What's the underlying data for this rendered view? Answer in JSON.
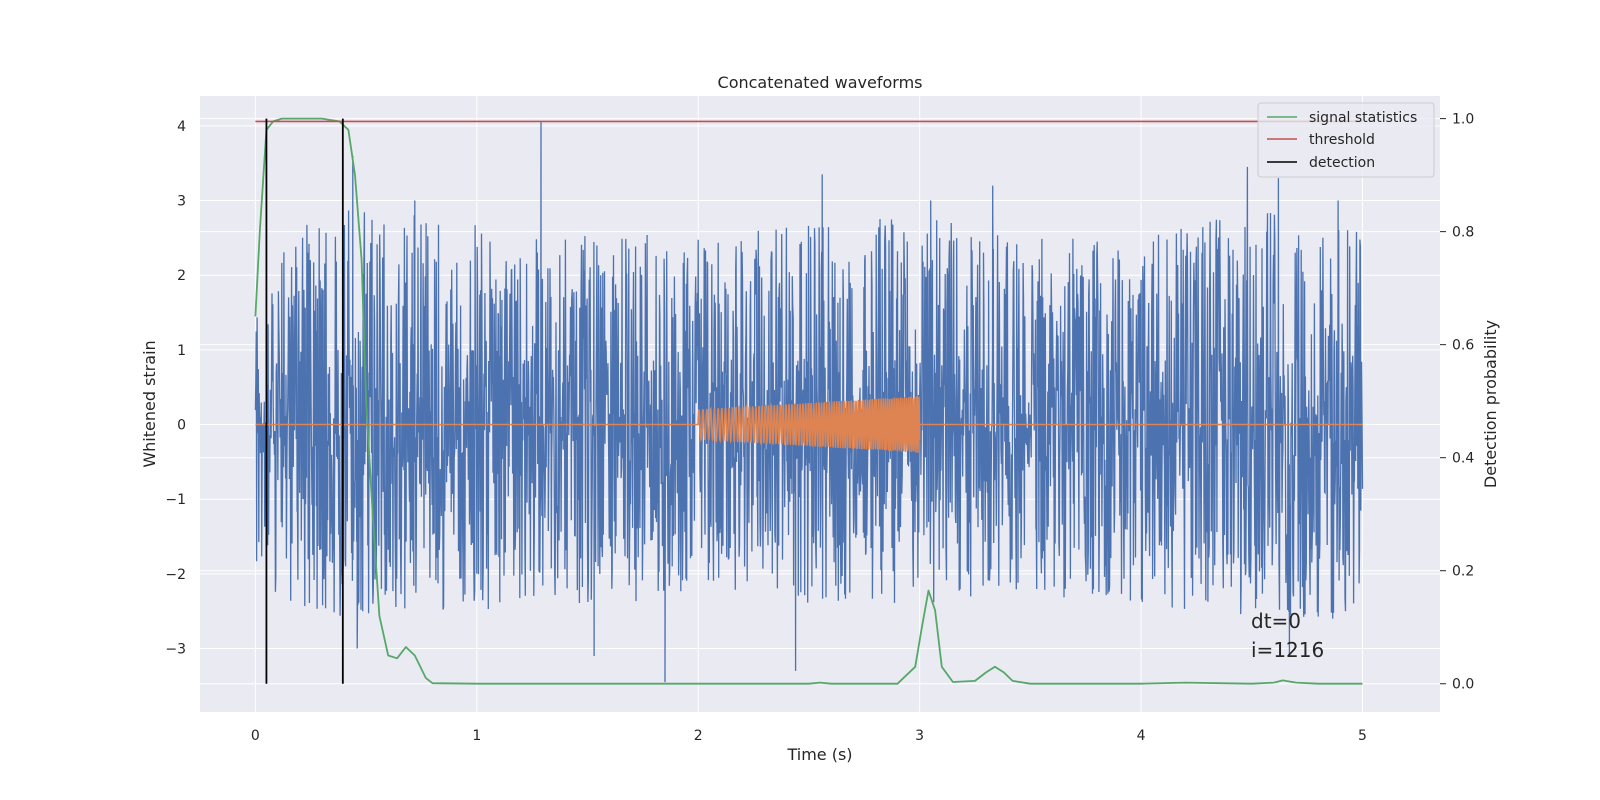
{
  "chart_data": {
    "type": "line",
    "title": "Concatenated waveforms",
    "xlabel": "Time (s)",
    "ylabel": "Whitened strain",
    "ylabel_right": "Detection probability",
    "xlim": [
      -0.25,
      5.35
    ],
    "ylim": [
      -3.85,
      4.4
    ],
    "ylim_right": [
      -0.05,
      1.04
    ],
    "xticks": [
      0,
      1,
      2,
      3,
      4,
      5
    ],
    "xtick_labels": [
      "0",
      "1",
      "2",
      "3",
      "4",
      "5"
    ],
    "yticks": [
      4,
      3,
      2,
      1,
      0,
      -1,
      -2,
      -3
    ],
    "ytick_labels": [
      "4",
      "3",
      "2",
      "1",
      "0",
      "−1",
      "−2",
      "−3"
    ],
    "yticks_right": [
      1.0,
      0.8,
      0.6,
      0.4,
      0.2,
      0.0
    ],
    "ytick_labels_right": [
      "1.0",
      "0.8",
      "0.6",
      "0.4",
      "0.2",
      "0.0"
    ],
    "grid": true,
    "legend_position": "top-right",
    "colors": {
      "background": "#eaeaf2",
      "grid": "#ffffff",
      "whitened_strain": "#4c72b0",
      "injected_signal": "#dd8452",
      "signal_statistics": "#55a868",
      "threshold": "#c44e52",
      "detection": "#000000"
    },
    "series": [
      {
        "name": "",
        "axis": "left",
        "kind": "noise",
        "x_range": [
          0,
          5
        ],
        "envelope": {
          "x": [
            0,
            0.1,
            0.3,
            0.5,
            1.0,
            1.5,
            2.0,
            2.5,
            3.0,
            3.5,
            4.0,
            4.5,
            5.0
          ],
          "upper": [
            1.6,
            2.4,
            2.9,
            2.9,
            2.7,
            2.6,
            2.5,
            2.7,
            2.8,
            2.5,
            2.5,
            2.9,
            2.7
          ],
          "lower": [
            -2.0,
            -2.3,
            -2.6,
            -2.6,
            -2.5,
            -2.5,
            -2.2,
            -2.4,
            -2.4,
            -2.3,
            -2.4,
            -2.6,
            -2.6
          ]
        },
        "spikes": [
          [
            0.44,
            3.6
          ],
          [
            0.72,
            3.0
          ],
          [
            1.29,
            4.05
          ],
          [
            1.85,
            -3.45
          ],
          [
            2.56,
            3.35
          ],
          [
            2.44,
            -3.3
          ],
          [
            3.05,
            3.0
          ],
          [
            3.33,
            3.2
          ],
          [
            4.48,
            3.45
          ],
          [
            4.62,
            3.3
          ],
          [
            4.67,
            -3.1
          ],
          [
            4.89,
            3.0
          ],
          [
            0.46,
            -3.0
          ],
          [
            1.53,
            -3.1
          ]
        ]
      },
      {
        "name": "",
        "axis": "left",
        "kind": "chirp",
        "x_range": [
          2.0,
          3.0
        ],
        "amplitude_start": 0.2,
        "amplitude_end": 0.38,
        "freq_start": 55,
        "freq_end": 110
      },
      {
        "name": "signal statistics",
        "axis": "right",
        "x": [
          0,
          0.02,
          0.05,
          0.08,
          0.12,
          0.2,
          0.3,
          0.38,
          0.42,
          0.45,
          0.48,
          0.5,
          0.53,
          0.56,
          0.6,
          0.64,
          0.68,
          0.72,
          0.77,
          0.8,
          1.0,
          2.5,
          2.55,
          2.6,
          2.9,
          2.98,
          3.01,
          3.04,
          3.07,
          3.1,
          3.15,
          3.25,
          3.3,
          3.34,
          3.38,
          3.42,
          3.5,
          4.0,
          4.2,
          4.5,
          4.6,
          4.64,
          4.7,
          4.8,
          5.0
        ],
        "y": [
          0.65,
          0.8,
          0.98,
          0.995,
          1.0,
          1.0,
          1.0,
          0.995,
          0.98,
          0.9,
          0.75,
          0.5,
          0.3,
          0.12,
          0.05,
          0.045,
          0.065,
          0.05,
          0.01,
          0.001,
          0.0,
          0.0,
          0.002,
          0.0,
          0.0,
          0.03,
          0.1,
          0.165,
          0.13,
          0.03,
          0.003,
          0.005,
          0.02,
          0.03,
          0.02,
          0.005,
          0.0,
          0.0,
          0.002,
          0.0,
          0.002,
          0.006,
          0.002,
          0.0,
          0.0
        ]
      },
      {
        "name": "threshold",
        "axis": "right",
        "x": [
          0,
          5
        ],
        "y": [
          0.995,
          0.995
        ]
      },
      {
        "name": "detection",
        "axis": "right",
        "kind": "vlines",
        "x": [
          0.05,
          0.395
        ],
        "ymin": 0.0,
        "ymax": 1.0
      }
    ],
    "annotations": [
      "dt=0",
      "i=1216"
    ]
  }
}
